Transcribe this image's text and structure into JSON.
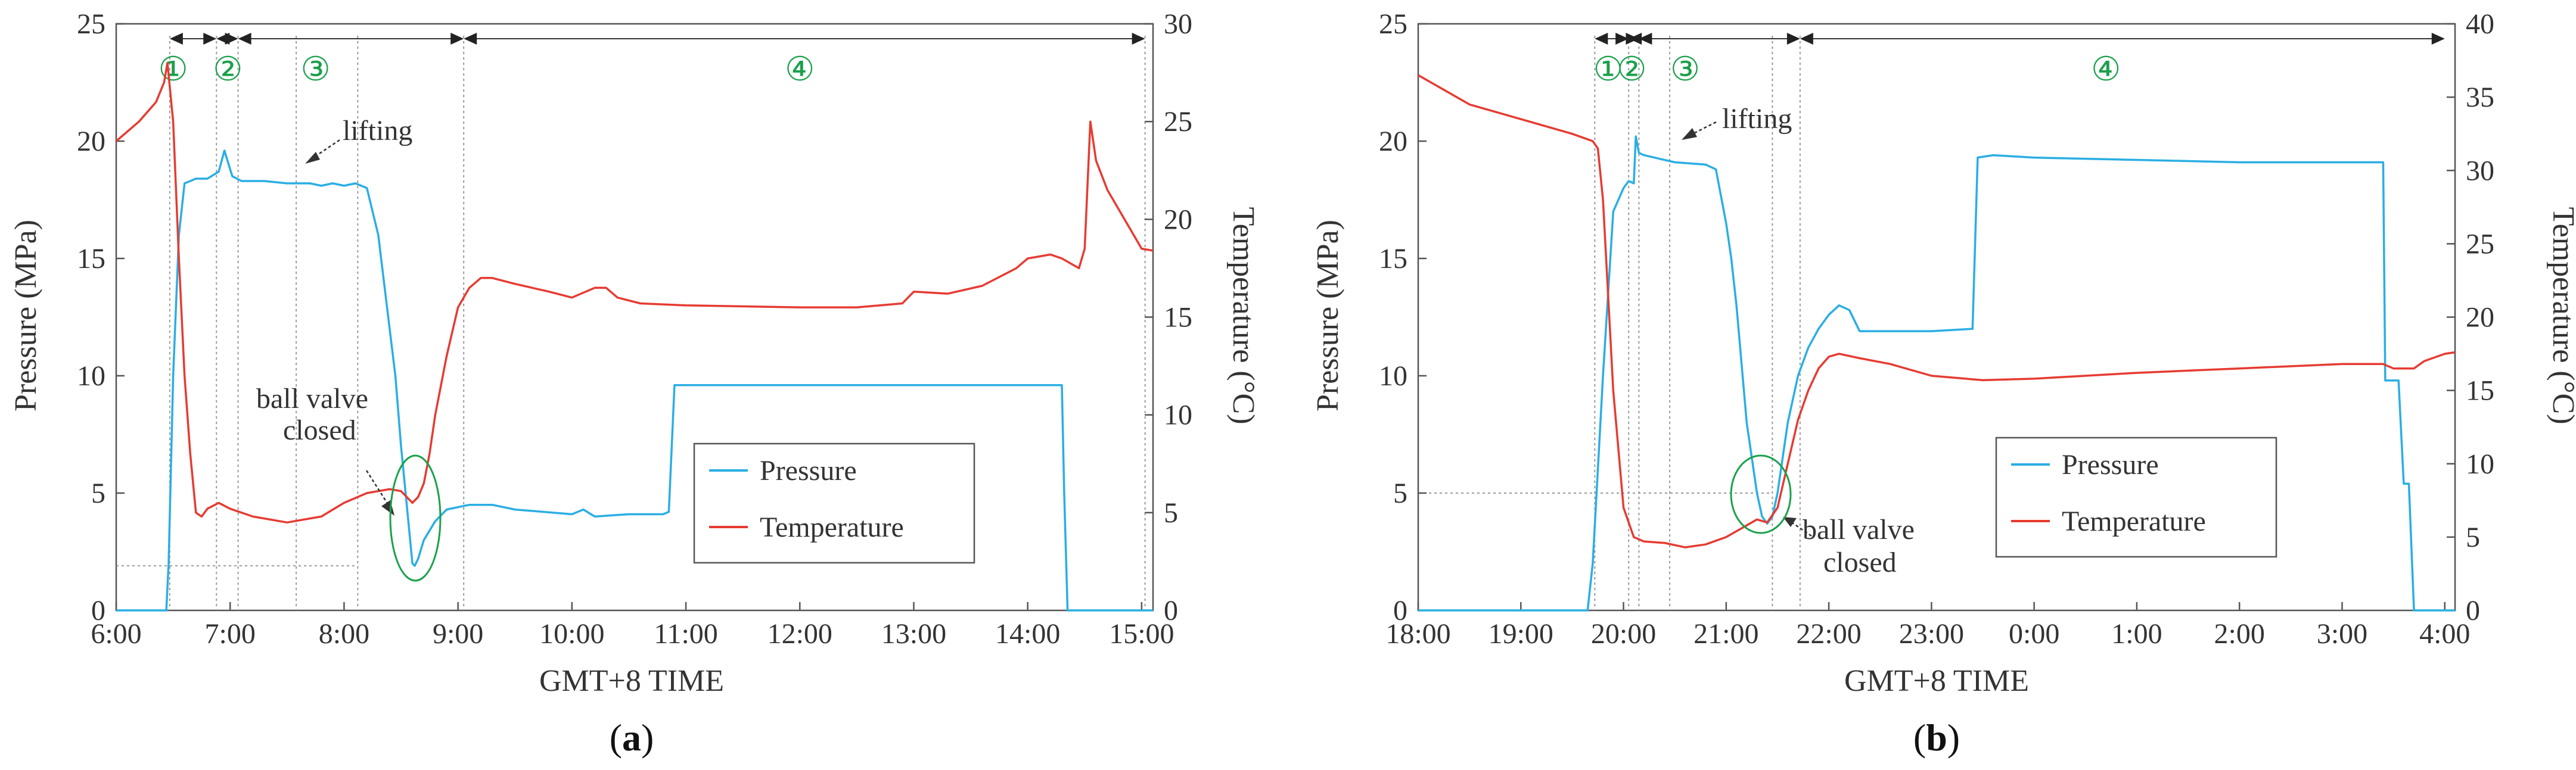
{
  "chart_data": [
    {
      "panel": "a",
      "panel_label": "(a)",
      "panel_letter": "a",
      "type": "line",
      "xlabel": "GMT+8 TIME",
      "ylabel_left": "Pressure (MPa)",
      "ylabel_right": "Temperature (°C)",
      "xlim": [
        0,
        9.1
      ],
      "ylim_left": [
        0,
        25
      ],
      "ylim_right": [
        0,
        30
      ],
      "x_ticks": [
        {
          "x": 0,
          "label": "6:00"
        },
        {
          "x": 1,
          "label": "7:00"
        },
        {
          "x": 2,
          "label": "8:00"
        },
        {
          "x": 3,
          "label": "9:00"
        },
        {
          "x": 4,
          "label": "10:00"
        },
        {
          "x": 5,
          "label": "11:00"
        },
        {
          "x": 6,
          "label": "12:00"
        },
        {
          "x": 7,
          "label": "13:00"
        },
        {
          "x": 8,
          "label": "14:00"
        },
        {
          "x": 9,
          "label": "15:00"
        }
      ],
      "y_ticks_left": [
        0,
        5,
        10,
        15,
        20,
        25
      ],
      "y_ticks_right": [
        0,
        5,
        10,
        15,
        20,
        25,
        30
      ],
      "legend": [
        "Pressure",
        "Temperature"
      ],
      "stages": [
        "①",
        "②",
        "③",
        "④"
      ],
      "stage_x": [
        0.5,
        0.98,
        1.75,
        6.0
      ],
      "stage_bounds": [
        0.47,
        0.88,
        1.07,
        3.05,
        9.03
      ],
      "vlines": [
        0.47,
        0.88,
        1.07,
        1.58,
        2.12,
        3.05,
        9.03
      ],
      "hline": {
        "y": 1.9,
        "x_from": 0,
        "x_to": 2.12
      },
      "series": [
        {
          "name": "Pressure",
          "axis": "left",
          "color": "#2aaee4",
          "x": [
            0,
            0.44,
            0.46,
            0.5,
            0.55,
            0.6,
            0.65,
            0.7,
            0.8,
            0.9,
            0.95,
            1.0,
            1.02,
            1.1,
            1.3,
            1.5,
            1.7,
            1.8,
            1.9,
            2.0,
            2.1,
            2.2,
            2.3,
            2.4,
            2.45,
            2.5,
            2.55,
            2.6,
            2.62,
            2.65,
            2.7,
            2.8,
            2.9,
            3.1,
            3.3,
            3.5,
            4.0,
            4.1,
            4.2,
            4.5,
            4.8,
            4.85,
            4.9,
            5.0,
            6.0,
            7.0,
            8.0,
            8.3,
            8.32,
            8.35,
            9.1
          ],
          "y": [
            0,
            0,
            2.0,
            10.0,
            16.0,
            18.2,
            18.3,
            18.4,
            18.4,
            18.7,
            19.6,
            18.8,
            18.5,
            18.3,
            18.3,
            18.2,
            18.2,
            18.1,
            18.2,
            18.1,
            18.2,
            18.0,
            16.0,
            12.0,
            10.0,
            7.0,
            4.5,
            2.0,
            1.9,
            2.2,
            3.0,
            3.8,
            4.3,
            4.5,
            4.5,
            4.3,
            4.1,
            4.3,
            4.0,
            4.1,
            4.1,
            4.2,
            9.6,
            9.6,
            9.6,
            9.6,
            9.6,
            9.6,
            5.0,
            0,
            0
          ]
        },
        {
          "name": "Temperature",
          "axis": "right",
          "color": "#e63b32",
          "x": [
            0,
            0.2,
            0.35,
            0.42,
            0.45,
            0.5,
            0.55,
            0.6,
            0.65,
            0.7,
            0.75,
            0.8,
            0.9,
            1.0,
            1.2,
            1.5,
            1.8,
            2.0,
            2.2,
            2.4,
            2.5,
            2.6,
            2.65,
            2.7,
            2.75,
            2.8,
            2.9,
            3.0,
            3.1,
            3.2,
            3.3,
            3.5,
            3.8,
            4.0,
            4.2,
            4.3,
            4.4,
            4.6,
            5.0,
            6.0,
            6.5,
            6.9,
            7.0,
            7.3,
            7.6,
            7.9,
            8.0,
            8.2,
            8.3,
            8.45,
            8.5,
            8.55,
            8.6,
            8.7,
            8.8,
            8.9,
            9.0,
            9.1
          ],
          "y": [
            24.0,
            25.0,
            26.0,
            27.0,
            28.0,
            25.0,
            18.0,
            12.0,
            8.0,
            5.0,
            4.8,
            5.2,
            5.5,
            5.2,
            4.8,
            4.5,
            4.8,
            5.5,
            6.0,
            6.2,
            6.1,
            5.5,
            5.8,
            6.5,
            8.0,
            10.0,
            13.0,
            15.5,
            16.5,
            17.0,
            17.0,
            16.7,
            16.3,
            16.0,
            16.5,
            16.5,
            16.0,
            15.7,
            15.6,
            15.5,
            15.5,
            15.7,
            16.3,
            16.2,
            16.6,
            17.5,
            18.0,
            18.2,
            18.0,
            17.5,
            18.5,
            25.0,
            23.0,
            21.5,
            20.5,
            19.5,
            18.5,
            18.4
          ]
        }
      ]
    },
    {
      "panel": "b",
      "panel_label": "(b)",
      "panel_letter": "b",
      "type": "line",
      "xlabel": "GMT+8 TIME",
      "ylabel_left": "Pressure (MPa)",
      "ylabel_right": "Temperature (°C)",
      "xlim": [
        18,
        28.1
      ],
      "ylim_left": [
        0,
        25
      ],
      "ylim_right": [
        0,
        40
      ],
      "x_ticks": [
        {
          "x": 18,
          "label": "18:00"
        },
        {
          "x": 19,
          "label": "19:00"
        },
        {
          "x": 20,
          "label": "20:00"
        },
        {
          "x": 21,
          "label": "21:00"
        },
        {
          "x": 22,
          "label": "22:00"
        },
        {
          "x": 23,
          "label": "23:00"
        },
        {
          "x": 24,
          "label": "0:00"
        },
        {
          "x": 25,
          "label": "1:00"
        },
        {
          "x": 26,
          "label": "2:00"
        },
        {
          "x": 27,
          "label": "3:00"
        },
        {
          "x": 28,
          "label": "4:00"
        }
      ],
      "y_ticks_left": [
        0,
        5,
        10,
        15,
        20,
        25
      ],
      "y_ticks_right": [
        0,
        5,
        10,
        15,
        20,
        25,
        30,
        35,
        40
      ],
      "legend": [
        "Pressure",
        "Temperature"
      ],
      "stages": [
        "①",
        "②",
        "③",
        "④"
      ],
      "stage_x": [
        19.85,
        20.08,
        20.6,
        24.7
      ],
      "stage_bounds": [
        19.72,
        20.05,
        20.15,
        21.72,
        28.0
      ],
      "vlines": [
        19.72,
        20.05,
        20.15,
        20.45,
        21.45,
        21.72
      ],
      "hline": {
        "y": 5.0,
        "x_from": 18,
        "x_to": 21.45
      },
      "series": [
        {
          "name": "Pressure",
          "axis": "left",
          "color": "#2aaee4",
          "x": [
            18,
            19.65,
            19.7,
            19.8,
            19.9,
            20.0,
            20.05,
            20.1,
            20.12,
            20.15,
            20.2,
            20.3,
            20.5,
            20.8,
            20.9,
            21.0,
            21.05,
            21.1,
            21.2,
            21.3,
            21.35,
            21.4,
            21.45,
            21.5,
            21.6,
            21.7,
            21.8,
            21.9,
            22.0,
            22.1,
            22.2,
            22.3,
            23.0,
            23.4,
            23.45,
            23.6,
            24.0,
            25.0,
            26.0,
            27.0,
            27.4,
            27.42,
            27.5,
            27.55,
            27.6,
            27.65,
            27.7,
            28.1
          ],
          "y": [
            0,
            0,
            2.0,
            10.0,
            17.0,
            18.0,
            18.3,
            18.2,
            20.2,
            19.5,
            19.4,
            19.3,
            19.1,
            19.0,
            18.8,
            16.5,
            15.0,
            13.0,
            8.0,
            5.0,
            4.0,
            3.7,
            4.0,
            5.0,
            8.0,
            10.0,
            11.2,
            12.0,
            12.6,
            13.0,
            12.8,
            11.9,
            11.9,
            12.0,
            19.3,
            19.4,
            19.3,
            19.2,
            19.1,
            19.1,
            19.1,
            9.8,
            9.8,
            9.8,
            5.4,
            5.4,
            0,
            0
          ]
        },
        {
          "name": "Temperature",
          "axis": "right",
          "color": "#e63b32",
          "x": [
            18,
            18.5,
            19.0,
            19.5,
            19.7,
            19.75,
            19.8,
            19.9,
            20.0,
            20.1,
            20.2,
            20.4,
            20.6,
            20.8,
            21.0,
            21.2,
            21.3,
            21.4,
            21.5,
            21.6,
            21.7,
            21.8,
            21.9,
            22.0,
            22.1,
            22.3,
            22.6,
            23.0,
            23.5,
            24.0,
            25.0,
            26.0,
            27.0,
            27.4,
            27.5,
            27.7,
            27.8,
            28.0,
            28.1
          ],
          "y": [
            36.5,
            34.5,
            33.5,
            32.5,
            32.0,
            31.5,
            28.0,
            15.0,
            7.0,
            5.0,
            4.7,
            4.6,
            4.3,
            4.5,
            5.0,
            5.8,
            6.2,
            6.0,
            7.0,
            10.0,
            13.0,
            15.0,
            16.5,
            17.3,
            17.5,
            17.2,
            16.8,
            16.0,
            15.7,
            15.8,
            16.2,
            16.5,
            16.8,
            16.8,
            16.5,
            16.5,
            17.0,
            17.5,
            17.6
          ]
        }
      ]
    }
  ],
  "annotations": {
    "a": {
      "lifting": "lifting",
      "ball_valve_1": "ball valve",
      "ball_valve_2": "closed"
    },
    "b": {
      "lifting": "lifting",
      "ball_valve_1": "ball valve",
      "ball_valve_2": "closed"
    }
  },
  "colors": {
    "pressure": "#2aaee4",
    "temperature": "#e63b32",
    "stage": "#1aa04b",
    "axis": "#444444"
  }
}
